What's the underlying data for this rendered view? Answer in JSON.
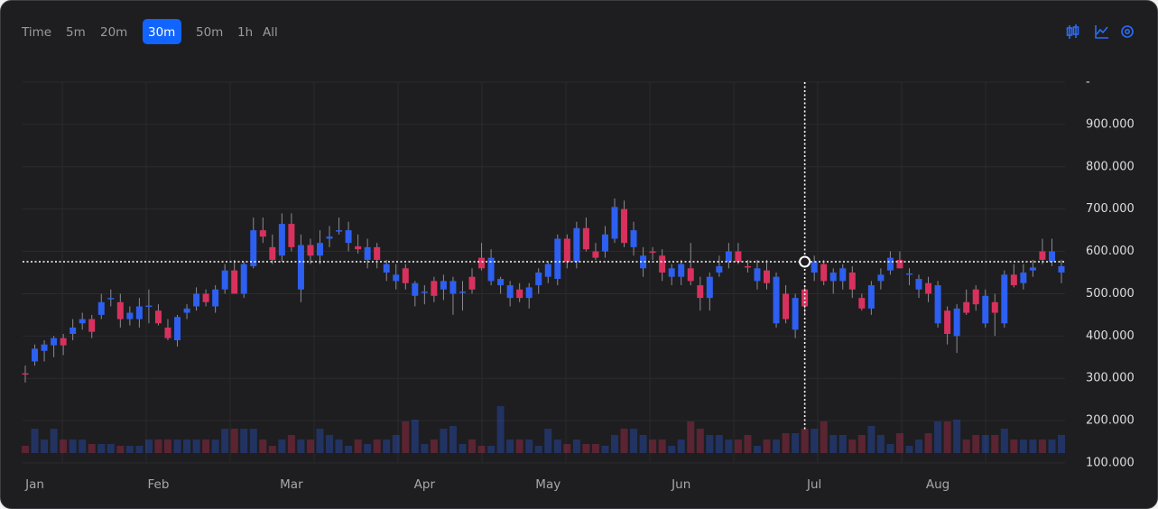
{
  "toolbar": {
    "items": [
      "Time",
      "5m",
      "20m",
      "30m",
      "50m",
      "1h",
      "All"
    ],
    "selected": 3
  },
  "chart_data": {
    "type": "candlestick",
    "categories": [
      null,
      "Jan",
      null,
      null,
      null,
      null,
      null,
      null,
      null,
      null,
      null,
      null,
      null,
      null,
      "Feb",
      null,
      null,
      null,
      null,
      null,
      null,
      null,
      null,
      null,
      null,
      null,
      null,
      null,
      "Mar",
      null,
      null,
      null,
      null,
      null,
      null,
      null,
      null,
      null,
      null,
      null,
      null,
      null,
      "Apr",
      null,
      null,
      null,
      null,
      null,
      null,
      null,
      null,
      null,
      null,
      null,
      null,
      "May",
      null,
      null,
      null,
      null,
      null,
      null,
      null,
      null,
      null,
      null,
      null,
      null,
      null,
      "Jun",
      null,
      null,
      null,
      null,
      null,
      null,
      null,
      null,
      null,
      null,
      null,
      null,
      null,
      "Jul",
      null,
      null,
      null,
      null,
      null,
      null,
      null,
      null,
      null,
      null,
      null,
      null,
      "Aug",
      null,
      null,
      null,
      null,
      null,
      null,
      null,
      null,
      null,
      null,
      null,
      null,
      null
    ],
    "open": [
      312,
      340,
      365,
      378,
      395,
      405,
      430,
      440,
      450,
      488,
      480,
      440,
      440,
      470,
      460,
      420,
      390,
      455,
      470,
      500,
      470,
      510,
      555,
      500,
      565,
      650,
      610,
      590,
      665,
      510,
      615,
      590,
      630,
      648,
      620,
      612,
      580,
      610,
      550,
      530,
      560,
      495,
      505,
      530,
      510,
      500,
      505,
      540,
      585,
      530,
      520,
      490,
      510,
      490,
      520,
      540,
      535,
      630,
      575,
      655,
      600,
      600,
      630,
      700,
      610,
      560,
      600,
      590,
      540,
      540,
      560,
      520,
      490,
      550,
      575,
      600,
      565,
      530,
      555,
      430,
      500,
      415,
      510,
      550,
      570,
      530,
      530,
      550,
      490,
      465,
      530,
      555,
      580,
      545,
      510,
      525,
      430,
      460,
      400,
      480,
      510,
      430,
      480,
      430,
      545,
      525,
      555,
      600,
      575,
      550
    ],
    "high": [
      330,
      380,
      390,
      400,
      405,
      440,
      455,
      450,
      500,
      510,
      500,
      470,
      490,
      510,
      475,
      440,
      450,
      475,
      515,
      510,
      520,
      570,
      580,
      575,
      680,
      680,
      640,
      690,
      690,
      640,
      630,
      650,
      660,
      680,
      670,
      640,
      630,
      620,
      580,
      570,
      570,
      530,
      520,
      540,
      545,
      540,
      530,
      560,
      620,
      605,
      540,
      530,
      525,
      525,
      560,
      575,
      640,
      640,
      670,
      680,
      620,
      660,
      725,
      720,
      670,
      610,
      610,
      605,
      570,
      580,
      620,
      540,
      550,
      590,
      620,
      620,
      580,
      580,
      580,
      550,
      520,
      500,
      520,
      590,
      580,
      560,
      570,
      565,
      500,
      530,
      560,
      600,
      600,
      560,
      545,
      540,
      530,
      470,
      475,
      510,
      520,
      510,
      500,
      555,
      570,
      570,
      580,
      630,
      630,
      580
    ],
    "low": [
      290,
      330,
      340,
      350,
      355,
      390,
      415,
      395,
      440,
      470,
      420,
      425,
      420,
      430,
      425,
      390,
      375,
      440,
      460,
      470,
      455,
      500,
      500,
      490,
      560,
      620,
      570,
      575,
      600,
      480,
      570,
      570,
      610,
      640,
      600,
      595,
      560,
      560,
      530,
      510,
      510,
      470,
      475,
      480,
      485,
      450,
      460,
      500,
      555,
      520,
      500,
      470,
      480,
      465,
      500,
      525,
      520,
      560,
      560,
      600,
      580,
      585,
      620,
      610,
      590,
      540,
      580,
      530,
      520,
      520,
      520,
      460,
      460,
      540,
      560,
      570,
      550,
      510,
      510,
      420,
      430,
      395,
      450,
      530,
      520,
      500,
      510,
      490,
      460,
      450,
      510,
      545,
      560,
      520,
      490,
      480,
      420,
      380,
      360,
      450,
      460,
      420,
      400,
      420,
      515,
      510,
      540,
      570,
      565,
      525
    ],
    "close": [
      310,
      370,
      380,
      395,
      378,
      420,
      440,
      410,
      480,
      490,
      440,
      455,
      470,
      472,
      430,
      395,
      445,
      465,
      500,
      480,
      510,
      555,
      500,
      570,
      650,
      635,
      580,
      665,
      610,
      615,
      590,
      620,
      635,
      650,
      650,
      605,
      610,
      580,
      570,
      545,
      525,
      525,
      505,
      495,
      530,
      530,
      505,
      510,
      560,
      585,
      535,
      520,
      490,
      515,
      550,
      570,
      630,
      575,
      655,
      605,
      585,
      640,
      705,
      620,
      650,
      590,
      598,
      550,
      560,
      570,
      530,
      490,
      540,
      565,
      600,
      575,
      562,
      560,
      525,
      540,
      440,
      490,
      470,
      575,
      530,
      550,
      560,
      510,
      465,
      520,
      545,
      585,
      560,
      548,
      535,
      500,
      520,
      405,
      465,
      455,
      475,
      495,
      455,
      545,
      520,
      550,
      562,
      580,
      600,
      565
    ],
    "volume": [
      8,
      27,
      15,
      27,
      15,
      15,
      15,
      10,
      10,
      10,
      8,
      8,
      8,
      15,
      15,
      15,
      15,
      15,
      15,
      15,
      15,
      27,
      27,
      27,
      27,
      15,
      8,
      15,
      20,
      15,
      15,
      27,
      20,
      15,
      8,
      15,
      10,
      15,
      15,
      20,
      35,
      37,
      10,
      15,
      27,
      30,
      10,
      15,
      8,
      8,
      52,
      15,
      15,
      15,
      8,
      27,
      15,
      10,
      15,
      10,
      10,
      8,
      20,
      27,
      27,
      20,
      15,
      15,
      8,
      15,
      35,
      27,
      20,
      20,
      15,
      15,
      20,
      8,
      15,
      15,
      22,
      22,
      27,
      27,
      35,
      20,
      20,
      15,
      20,
      30,
      20,
      10,
      22,
      8,
      15,
      22,
      35,
      35,
      37,
      15,
      20,
      20,
      20,
      27,
      15,
      15,
      15,
      15,
      15,
      20
    ],
    "up_color": "#2d5ff0",
    "down_color": "#d9315e",
    "ylim": [
      100,
      1000
    ],
    "yticks": [
      {
        "value": 100,
        "label": "100.000"
      },
      {
        "value": 200,
        "label": "200.000"
      },
      {
        "value": 300,
        "label": "300.000"
      },
      {
        "value": 400,
        "label": "400.000"
      },
      {
        "value": 500,
        "label": "500.000"
      },
      {
        "value": 600,
        "label": "600.000"
      },
      {
        "value": 700,
        "label": "700.000"
      },
      {
        "value": 800,
        "label": "800.000"
      },
      {
        "value": 900,
        "label": "900.000"
      },
      {
        "value": 1000,
        "label": "-"
      }
    ],
    "grid": true
  }
}
